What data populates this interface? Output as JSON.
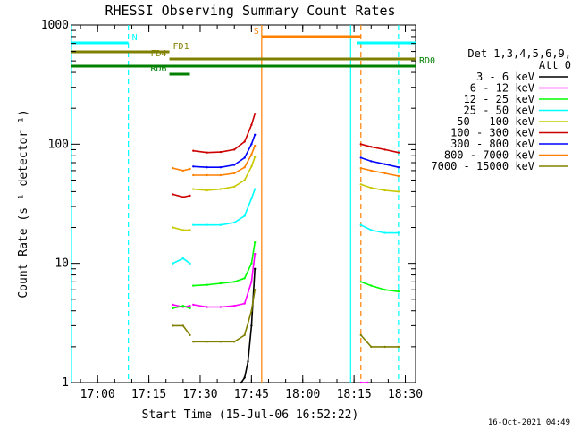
{
  "chart_data": {
    "type": "line",
    "title": "RHESSI Observing Summary Count Rates",
    "xlabel": "Start Time (15-Jul-06 16:52:22)",
    "ylabel": "Count Rate (s⁻¹ detector⁻¹)",
    "y_scale": "log",
    "ylim": [
      1,
      1000
    ],
    "xlim": [
      "16:52:22",
      "18:33:00"
    ],
    "x_ticks": [
      "17:00",
      "17:15",
      "17:30",
      "17:45",
      "18:00",
      "18:15",
      "18:30"
    ],
    "y_ticks": [
      "1",
      "10",
      "100",
      "1000"
    ],
    "grid": false,
    "legend_title": [
      "Det 1,3,4,5,6,9,",
      "Att 0"
    ],
    "legend_position": "right",
    "series": [
      {
        "name": "3 - 6 keV",
        "color": "#000000",
        "segments": [
          [
            [
              "17:42",
              "1.0"
            ],
            [
              "17:43",
              "1.1"
            ],
            [
              "17:44",
              "1.5"
            ],
            [
              "17:45",
              "3.0"
            ],
            [
              "17:46",
              "9.0"
            ]
          ]
        ]
      },
      {
        "name": "6 - 12 keV",
        "color": "#ff00ff",
        "segments": [
          [
            [
              "17:22",
              "4.5"
            ],
            [
              "17:25",
              "4.3"
            ],
            [
              "17:27",
              "4.4"
            ]
          ],
          [
            [
              "17:28",
              "4.5"
            ],
            [
              "17:32",
              "4.3"
            ],
            [
              "17:36",
              "4.3"
            ],
            [
              "17:40",
              "4.4"
            ],
            [
              "17:43",
              "4.6"
            ],
            [
              "17:45",
              "7.0"
            ],
            [
              "17:46",
              "12"
            ]
          ],
          [
            [
              "18:17",
              "1.0"
            ],
            [
              "18:19",
              "1.0"
            ]
          ]
        ]
      },
      {
        "name": "12 - 25 keV",
        "color": "#00ff00",
        "segments": [
          [
            [
              "17:22",
              "4.2"
            ],
            [
              "17:25",
              "4.4"
            ],
            [
              "17:27",
              "4.2"
            ]
          ],
          [
            [
              "17:28",
              "6.5"
            ],
            [
              "17:32",
              "6.6"
            ],
            [
              "17:36",
              "6.8"
            ],
            [
              "17:40",
              "7.0"
            ],
            [
              "17:43",
              "7.5"
            ],
            [
              "17:45",
              "10"
            ],
            [
              "17:46",
              "15"
            ]
          ],
          [
            [
              "18:17",
              "7.0"
            ],
            [
              "18:20",
              "6.5"
            ],
            [
              "18:24",
              "6.0"
            ],
            [
              "18:28",
              "5.8"
            ]
          ]
        ]
      },
      {
        "name": "25 - 50 keV",
        "color": "#00ffff",
        "segments": [
          [
            [
              "17:22",
              "10"
            ],
            [
              "17:25",
              "11"
            ],
            [
              "17:27",
              "10"
            ]
          ],
          [
            [
              "17:28",
              "21"
            ],
            [
              "17:32",
              "21"
            ],
            [
              "17:36",
              "21"
            ],
            [
              "17:40",
              "22"
            ],
            [
              "17:43",
              "25"
            ],
            [
              "17:45",
              "35"
            ],
            [
              "17:46",
              "42"
            ]
          ],
          [
            [
              "18:17",
              "21"
            ],
            [
              "18:20",
              "19"
            ],
            [
              "18:24",
              "18"
            ],
            [
              "18:28",
              "18"
            ]
          ]
        ]
      },
      {
        "name": "50 - 100 keV",
        "color": "#c8c800",
        "segments": [
          [
            [
              "17:22",
              "20"
            ],
            [
              "17:25",
              "19"
            ],
            [
              "17:27",
              "19"
            ]
          ],
          [
            [
              "17:28",
              "42"
            ],
            [
              "17:32",
              "41"
            ],
            [
              "17:36",
              "42"
            ],
            [
              "17:40",
              "44"
            ],
            [
              "17:43",
              "50"
            ],
            [
              "17:45",
              "65"
            ],
            [
              "17:46",
              "78"
            ]
          ],
          [
            [
              "18:17",
              "46"
            ],
            [
              "18:20",
              "43"
            ],
            [
              "18:24",
              "41"
            ],
            [
              "18:28",
              "40"
            ]
          ]
        ]
      },
      {
        "name": "100 - 300 keV",
        "color": "#cc0000",
        "segments": [
          [
            [
              "17:22",
              "38"
            ],
            [
              "17:25",
              "36"
            ],
            [
              "17:27",
              "37"
            ]
          ],
          [
            [
              "17:28",
              "88"
            ],
            [
              "17:32",
              "85"
            ],
            [
              "17:36",
              "86"
            ],
            [
              "17:40",
              "90"
            ],
            [
              "17:43",
              "105"
            ],
            [
              "17:45",
              "145"
            ],
            [
              "17:46",
              "180"
            ]
          ],
          [
            [
              "18:17",
              "100"
            ],
            [
              "18:20",
              "95"
            ],
            [
              "18:24",
              "90"
            ],
            [
              "18:28",
              "85"
            ]
          ]
        ]
      },
      {
        "name": "300 - 800 keV",
        "color": "#0000ff",
        "segments": [
          [
            [
              "17:28",
              "65"
            ],
            [
              "17:32",
              "64"
            ],
            [
              "17:36",
              "64"
            ],
            [
              "17:40",
              "67"
            ],
            [
              "17:43",
              "77"
            ],
            [
              "17:45",
              "100"
            ],
            [
              "17:46",
              "120"
            ]
          ],
          [
            [
              "18:17",
              "77"
            ],
            [
              "18:20",
              "72"
            ],
            [
              "18:24",
              "68"
            ],
            [
              "18:28",
              "64"
            ]
          ]
        ]
      },
      {
        "name": "800 - 7000 keV",
        "color": "#ff8000",
        "segments": [
          [
            [
              "17:22",
              "63"
            ],
            [
              "17:25",
              "60"
            ],
            [
              "17:27",
              "62"
            ]
          ],
          [
            [
              "17:28",
              "55"
            ],
            [
              "17:32",
              "55"
            ],
            [
              "17:36",
              "55"
            ],
            [
              "17:40",
              "57"
            ],
            [
              "17:43",
              "64"
            ],
            [
              "17:45",
              "82"
            ],
            [
              "17:46",
              "97"
            ]
          ],
          [
            [
              "18:17",
              "63"
            ],
            [
              "18:20",
              "60"
            ],
            [
              "18:24",
              "57"
            ],
            [
              "18:28",
              "54"
            ]
          ]
        ]
      },
      {
        "name": "7000 - 15000 keV",
        "color": "#808000",
        "segments": [
          [
            [
              "17:22",
              "3.0"
            ],
            [
              "17:25",
              "3.0"
            ],
            [
              "17:27",
              "2.5"
            ]
          ],
          [
            [
              "17:28",
              "2.2"
            ],
            [
              "17:32",
              "2.2"
            ],
            [
              "17:36",
              "2.2"
            ],
            [
              "17:40",
              "2.2"
            ],
            [
              "17:43",
              "2.5"
            ],
            [
              "17:45",
              "4.0"
            ],
            [
              "17:46",
              "6.0"
            ]
          ],
          [
            [
              "18:17",
              "2.5"
            ],
            [
              "18:20",
              "2.0"
            ],
            [
              "18:24",
              "2.0"
            ],
            [
              "18:28",
              "2.0"
            ]
          ]
        ]
      }
    ],
    "flag_bars": [
      {
        "label": "N",
        "color": "#00ffff",
        "level": 1,
        "start": "16:52:22",
        "end": "17:09"
      },
      {
        "label": "",
        "color": "#00ffff",
        "level": 1,
        "start": "18:16",
        "end": "18:33"
      },
      {
        "label": "S",
        "color": "#ff8000",
        "level": 0,
        "start": "17:48",
        "end": "18:17"
      },
      {
        "label": "FD1",
        "color": "#808000",
        "level": 2,
        "start": "16:52:22",
        "end": "17:21"
      },
      {
        "label": "FD4",
        "color": "#808000",
        "level": 3,
        "start": "17:21",
        "end": "18:33"
      },
      {
        "label": "RD0",
        "color": "#008000",
        "level": 4,
        "start": "17:21",
        "end": "18:33"
      },
      {
        "label": "",
        "color": "#008000",
        "level": 4,
        "start": "16:52:22",
        "end": "17:21"
      },
      {
        "label": "RD6",
        "color": "#008000",
        "level": 5,
        "start": "17:21",
        "end": "17:27"
      }
    ],
    "vertical_markers": [
      {
        "time": "16:52:22",
        "color": "#00ffff",
        "style": "solid"
      },
      {
        "time": "17:09",
        "color": "#00ffff",
        "style": "dashed"
      },
      {
        "time": "17:48",
        "color": "#ff8000",
        "style": "solid"
      },
      {
        "time": "18:17",
        "color": "#ff8000",
        "style": "dashed"
      },
      {
        "time": "18:14",
        "color": "#00ffff",
        "style": "solid"
      },
      {
        "time": "18:28",
        "color": "#00ffff",
        "style": "dashed"
      }
    ]
  },
  "timestamp": "16-Oct-2021 04:49"
}
